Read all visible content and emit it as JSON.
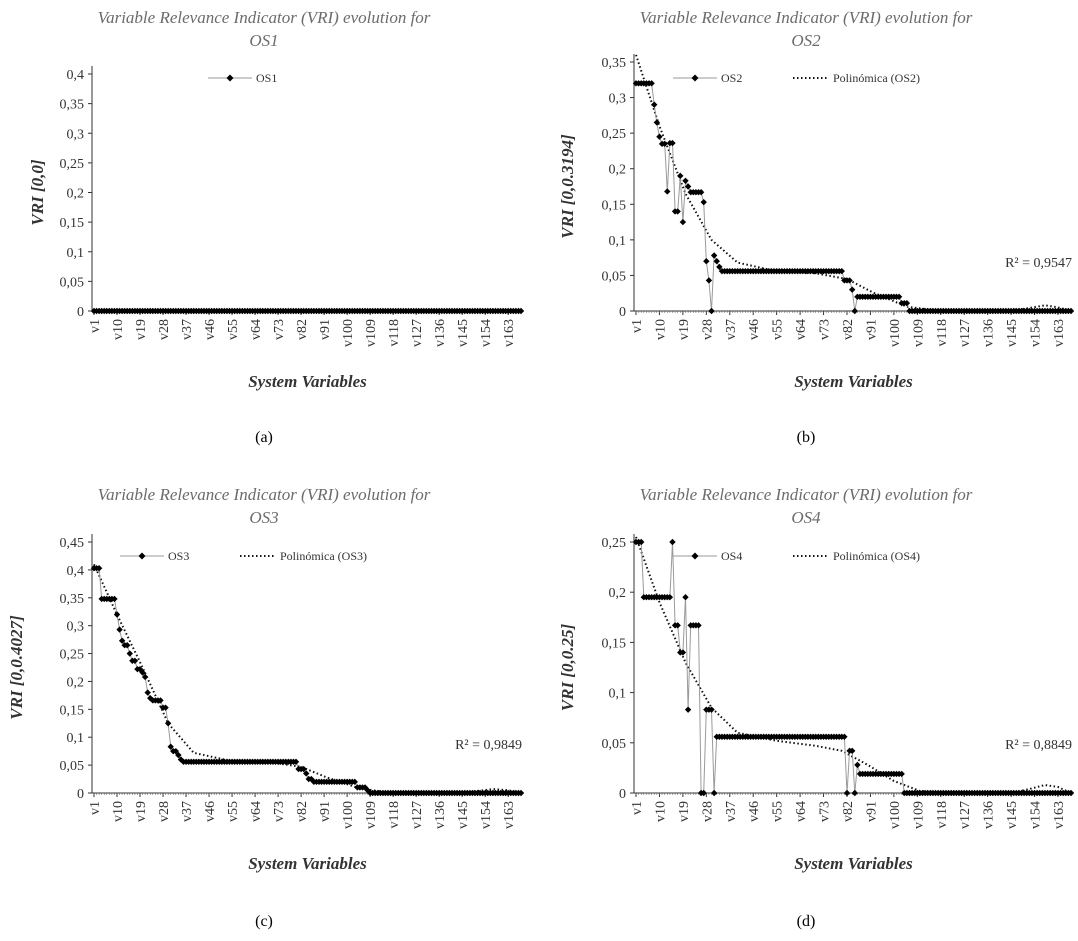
{
  "chart_data": [
    {
      "type": "line",
      "title_line1": "Variable Relevance Indicator (VRI) evolution for",
      "title_line2": "OS1",
      "ylabel": "VRI [0,0]",
      "xlabel": "System Variables",
      "caption": "(a)",
      "ylim": [
        0,
        0.4
      ],
      "ystep": 0.05,
      "yticks": [
        "0",
        "0,05",
        "0,1",
        "0,15",
        "0,2",
        "0,25",
        "0,3",
        "0,35",
        "0,4"
      ],
      "xticks": [
        "v1",
        "v10",
        "v19",
        "v28",
        "v37",
        "v46",
        "v55",
        "v64",
        "v73",
        "v82",
        "v91",
        "v100",
        "v109",
        "v118",
        "v127",
        "v136",
        "v145",
        "v154",
        "v163"
      ],
      "n_variables": 168,
      "legend": {
        "series": "OS1",
        "trend": ""
      },
      "r2": "",
      "segments": [
        [
          1,
          168,
          0
        ]
      ],
      "spikes": [],
      "trend": []
    },
    {
      "type": "line",
      "title_line1": "Variable Relevance Indicator (VRI) evolution for",
      "title_line2": "OS2",
      "ylabel": "VRI [0,0.3194]",
      "xlabel": "System Variables",
      "caption": "(b)",
      "ylim": [
        0,
        0.35
      ],
      "ystep": 0.05,
      "yticks": [
        "0",
        "0,05",
        "0,1",
        "0,15",
        "0,2",
        "0,25",
        "0,3",
        "0,35"
      ],
      "xticks": [
        "v1",
        "v10",
        "v19",
        "v28",
        "v37",
        "v46",
        "v55",
        "v64",
        "v73",
        "v82",
        "v91",
        "v100",
        "v109",
        "v118",
        "v127",
        "v136",
        "v145",
        "v154",
        "v163"
      ],
      "n_variables": 168,
      "legend": {
        "series": "OS2",
        "trend": "Polinómica (OS2)"
      },
      "r2": "R² = 0,9547",
      "segments": [
        [
          1,
          7,
          0.32
        ],
        [
          8,
          8,
          0.29
        ],
        [
          9,
          9,
          0.265
        ],
        [
          10,
          10,
          0.245
        ],
        [
          11,
          12,
          0.235
        ],
        [
          13,
          13,
          0.168
        ],
        [
          14,
          15,
          0.236
        ],
        [
          16,
          17,
          0.14
        ],
        [
          18,
          18,
          0.19
        ],
        [
          19,
          19,
          0.125
        ],
        [
          20,
          20,
          0.183
        ],
        [
          21,
          21,
          0.175
        ],
        [
          22,
          26,
          0.167
        ],
        [
          27,
          27,
          0.153
        ],
        [
          28,
          28,
          0.07
        ],
        [
          29,
          29,
          0.043
        ],
        [
          30,
          30,
          0.0
        ],
        [
          31,
          31,
          0.078
        ],
        [
          32,
          32,
          0.07
        ],
        [
          33,
          33,
          0.062
        ],
        [
          34,
          80,
          0.056
        ],
        [
          81,
          83,
          0.043
        ],
        [
          84,
          84,
          0.03
        ],
        [
          85,
          85,
          0.0
        ],
        [
          86,
          86,
          0.02
        ],
        [
          87,
          102,
          0.02
        ],
        [
          103,
          105,
          0.011
        ],
        [
          106,
          168,
          0.0
        ]
      ],
      "trend": [
        [
          1,
          0.36
        ],
        [
          10,
          0.26
        ],
        [
          20,
          0.165
        ],
        [
          30,
          0.1
        ],
        [
          40,
          0.068
        ],
        [
          55,
          0.056
        ],
        [
          70,
          0.053
        ],
        [
          82,
          0.045
        ],
        [
          92,
          0.026
        ],
        [
          105,
          0.006
        ],
        [
          118,
          0.0
        ],
        [
          140,
          0.0
        ],
        [
          150,
          0.003
        ],
        [
          158,
          0.008
        ],
        [
          163,
          0.005
        ],
        [
          168,
          0.0
        ]
      ]
    },
    {
      "type": "line",
      "title_line1": "Variable Relevance Indicator (VRI) evolution for",
      "title_line2": "OS3",
      "ylabel": "VRI [0,0.4027]",
      "xlabel": "System Variables",
      "caption": "(c)",
      "ylim": [
        0,
        0.45
      ],
      "ystep": 0.05,
      "yticks": [
        "0",
        "0,05",
        "0,1",
        "0,15",
        "0,2",
        "0,25",
        "0,3",
        "0,35",
        "0,4",
        "0,45"
      ],
      "xticks": [
        "v1",
        "v10",
        "v19",
        "v28",
        "v37",
        "v46",
        "v55",
        "v64",
        "v73",
        "v82",
        "v91",
        "v100",
        "v109",
        "v118",
        "v127",
        "v136",
        "v145",
        "v154",
        "v163"
      ],
      "n_variables": 168,
      "legend": {
        "series": "OS3",
        "trend": "Polinómica (OS3)"
      },
      "r2": "R² = 0,9849",
      "segments": [
        [
          1,
          3,
          0.403
        ],
        [
          4,
          9,
          0.348
        ],
        [
          10,
          10,
          0.32
        ],
        [
          11,
          11,
          0.293
        ],
        [
          12,
          12,
          0.273
        ],
        [
          13,
          14,
          0.265
        ],
        [
          15,
          15,
          0.25
        ],
        [
          16,
          17,
          0.237
        ],
        [
          18,
          19,
          0.222
        ],
        [
          20,
          20,
          0.216
        ],
        [
          21,
          21,
          0.208
        ],
        [
          22,
          22,
          0.18
        ],
        [
          23,
          23,
          0.17
        ],
        [
          24,
          27,
          0.166
        ],
        [
          28,
          29,
          0.153
        ],
        [
          30,
          30,
          0.125
        ],
        [
          31,
          31,
          0.083
        ],
        [
          32,
          33,
          0.075
        ],
        [
          34,
          34,
          0.068
        ],
        [
          35,
          35,
          0.06
        ],
        [
          36,
          80,
          0.056
        ],
        [
          81,
          83,
          0.043
        ],
        [
          84,
          84,
          0.035
        ],
        [
          85,
          86,
          0.025
        ],
        [
          87,
          103,
          0.02
        ],
        [
          104,
          107,
          0.01
        ],
        [
          108,
          108,
          0.005
        ],
        [
          109,
          168,
          0.0
        ]
      ],
      "trend": [
        [
          1,
          0.41
        ],
        [
          10,
          0.32
        ],
        [
          20,
          0.225
        ],
        [
          30,
          0.125
        ],
        [
          40,
          0.072
        ],
        [
          55,
          0.057
        ],
        [
          70,
          0.055
        ],
        [
          82,
          0.047
        ],
        [
          92,
          0.028
        ],
        [
          105,
          0.008
        ],
        [
          118,
          0.0
        ],
        [
          140,
          0.0
        ],
        [
          150,
          0.003
        ],
        [
          157,
          0.007
        ],
        [
          163,
          0.005
        ],
        [
          168,
          0.0
        ]
      ]
    },
    {
      "type": "line",
      "title_line1": "Variable Relevance Indicator (VRI) evolution for",
      "title_line2": "OS4",
      "ylabel": "VRI [0,0.25]",
      "xlabel": "System Variables",
      "caption": "(d)",
      "ylim": [
        0,
        0.25
      ],
      "ystep": 0.05,
      "yticks": [
        "0",
        "0,05",
        "0,1",
        "0,15",
        "0,2",
        "0,25"
      ],
      "xticks": [
        "v1",
        "v10",
        "v19",
        "v28",
        "v37",
        "v46",
        "v55",
        "v64",
        "v73",
        "v82",
        "v91",
        "v100",
        "v109",
        "v118",
        "v127",
        "v136",
        "v145",
        "v154",
        "v163"
      ],
      "n_variables": 168,
      "legend": {
        "series": "OS4",
        "trend": "Polinómica (OS4)"
      },
      "r2": "R² = 0,8849",
      "segments": [
        [
          1,
          3,
          0.25
        ],
        [
          4,
          14,
          0.195
        ],
        [
          15,
          15,
          0.25
        ],
        [
          16,
          17,
          0.167
        ],
        [
          18,
          19,
          0.14
        ],
        [
          20,
          20,
          0.195
        ],
        [
          21,
          21,
          0.083
        ],
        [
          22,
          22,
          0.167
        ],
        [
          23,
          23,
          0.167
        ],
        [
          24,
          25,
          0.167
        ],
        [
          26,
          27,
          0.0
        ],
        [
          28,
          30,
          0.083
        ],
        [
          31,
          31,
          0.0
        ],
        [
          32,
          81,
          0.056
        ],
        [
          82,
          82,
          0.0
        ],
        [
          83,
          84,
          0.042
        ],
        [
          85,
          85,
          0.0
        ],
        [
          86,
          86,
          0.028
        ],
        [
          87,
          103,
          0.019
        ],
        [
          104,
          168,
          0.0
        ]
      ],
      "trend": [
        [
          1,
          0.255
        ],
        [
          10,
          0.19
        ],
        [
          20,
          0.13
        ],
        [
          30,
          0.085
        ],
        [
          40,
          0.06
        ],
        [
          55,
          0.052
        ],
        [
          70,
          0.047
        ],
        [
          80,
          0.042
        ],
        [
          90,
          0.028
        ],
        [
          100,
          0.012
        ],
        [
          110,
          0.002
        ],
        [
          125,
          0.0
        ],
        [
          145,
          0.0
        ],
        [
          152,
          0.004
        ],
        [
          158,
          0.008
        ],
        [
          163,
          0.006
        ],
        [
          168,
          0.0
        ]
      ]
    }
  ]
}
